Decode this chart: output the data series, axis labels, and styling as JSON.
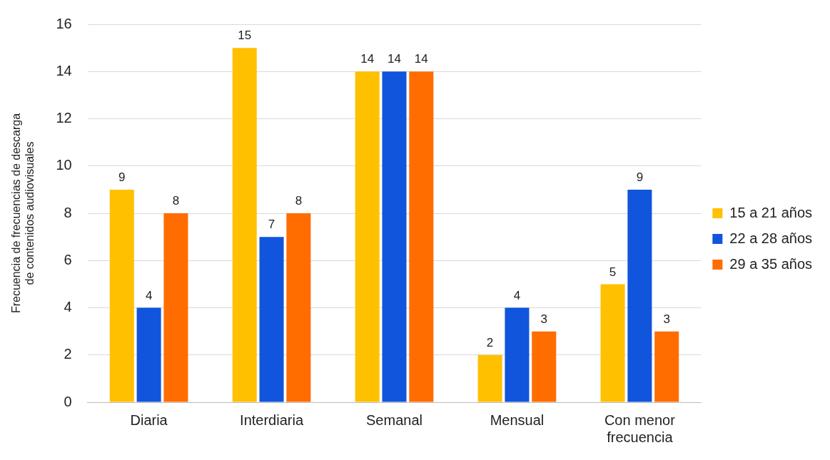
{
  "chart_data": {
    "type": "bar",
    "ylabel": "Frecuencia de frecuencias de descarga de contenidos audiovisuales",
    "categories": [
      "Diaria",
      "Interdiaria",
      "Semanal",
      "Mensual",
      "Con menor frecuencia"
    ],
    "series": [
      {
        "name": "15 a 21 años",
        "color": "#ffc000",
        "values": [
          9,
          15,
          14,
          2,
          5
        ]
      },
      {
        "name": "22 a 28 años",
        "color": "#1155dd",
        "values": [
          4,
          7,
          14,
          4,
          9
        ]
      },
      {
        "name": "29 a 35 años",
        "color": "#ff6d01",
        "values": [
          8,
          8,
          14,
          3,
          3
        ]
      }
    ],
    "ylim": [
      0,
      16
    ],
    "yticks": [
      0,
      2,
      4,
      6,
      8,
      10,
      12,
      14,
      16
    ],
    "grid": "y",
    "legend": "right",
    "data_labels": true
  }
}
